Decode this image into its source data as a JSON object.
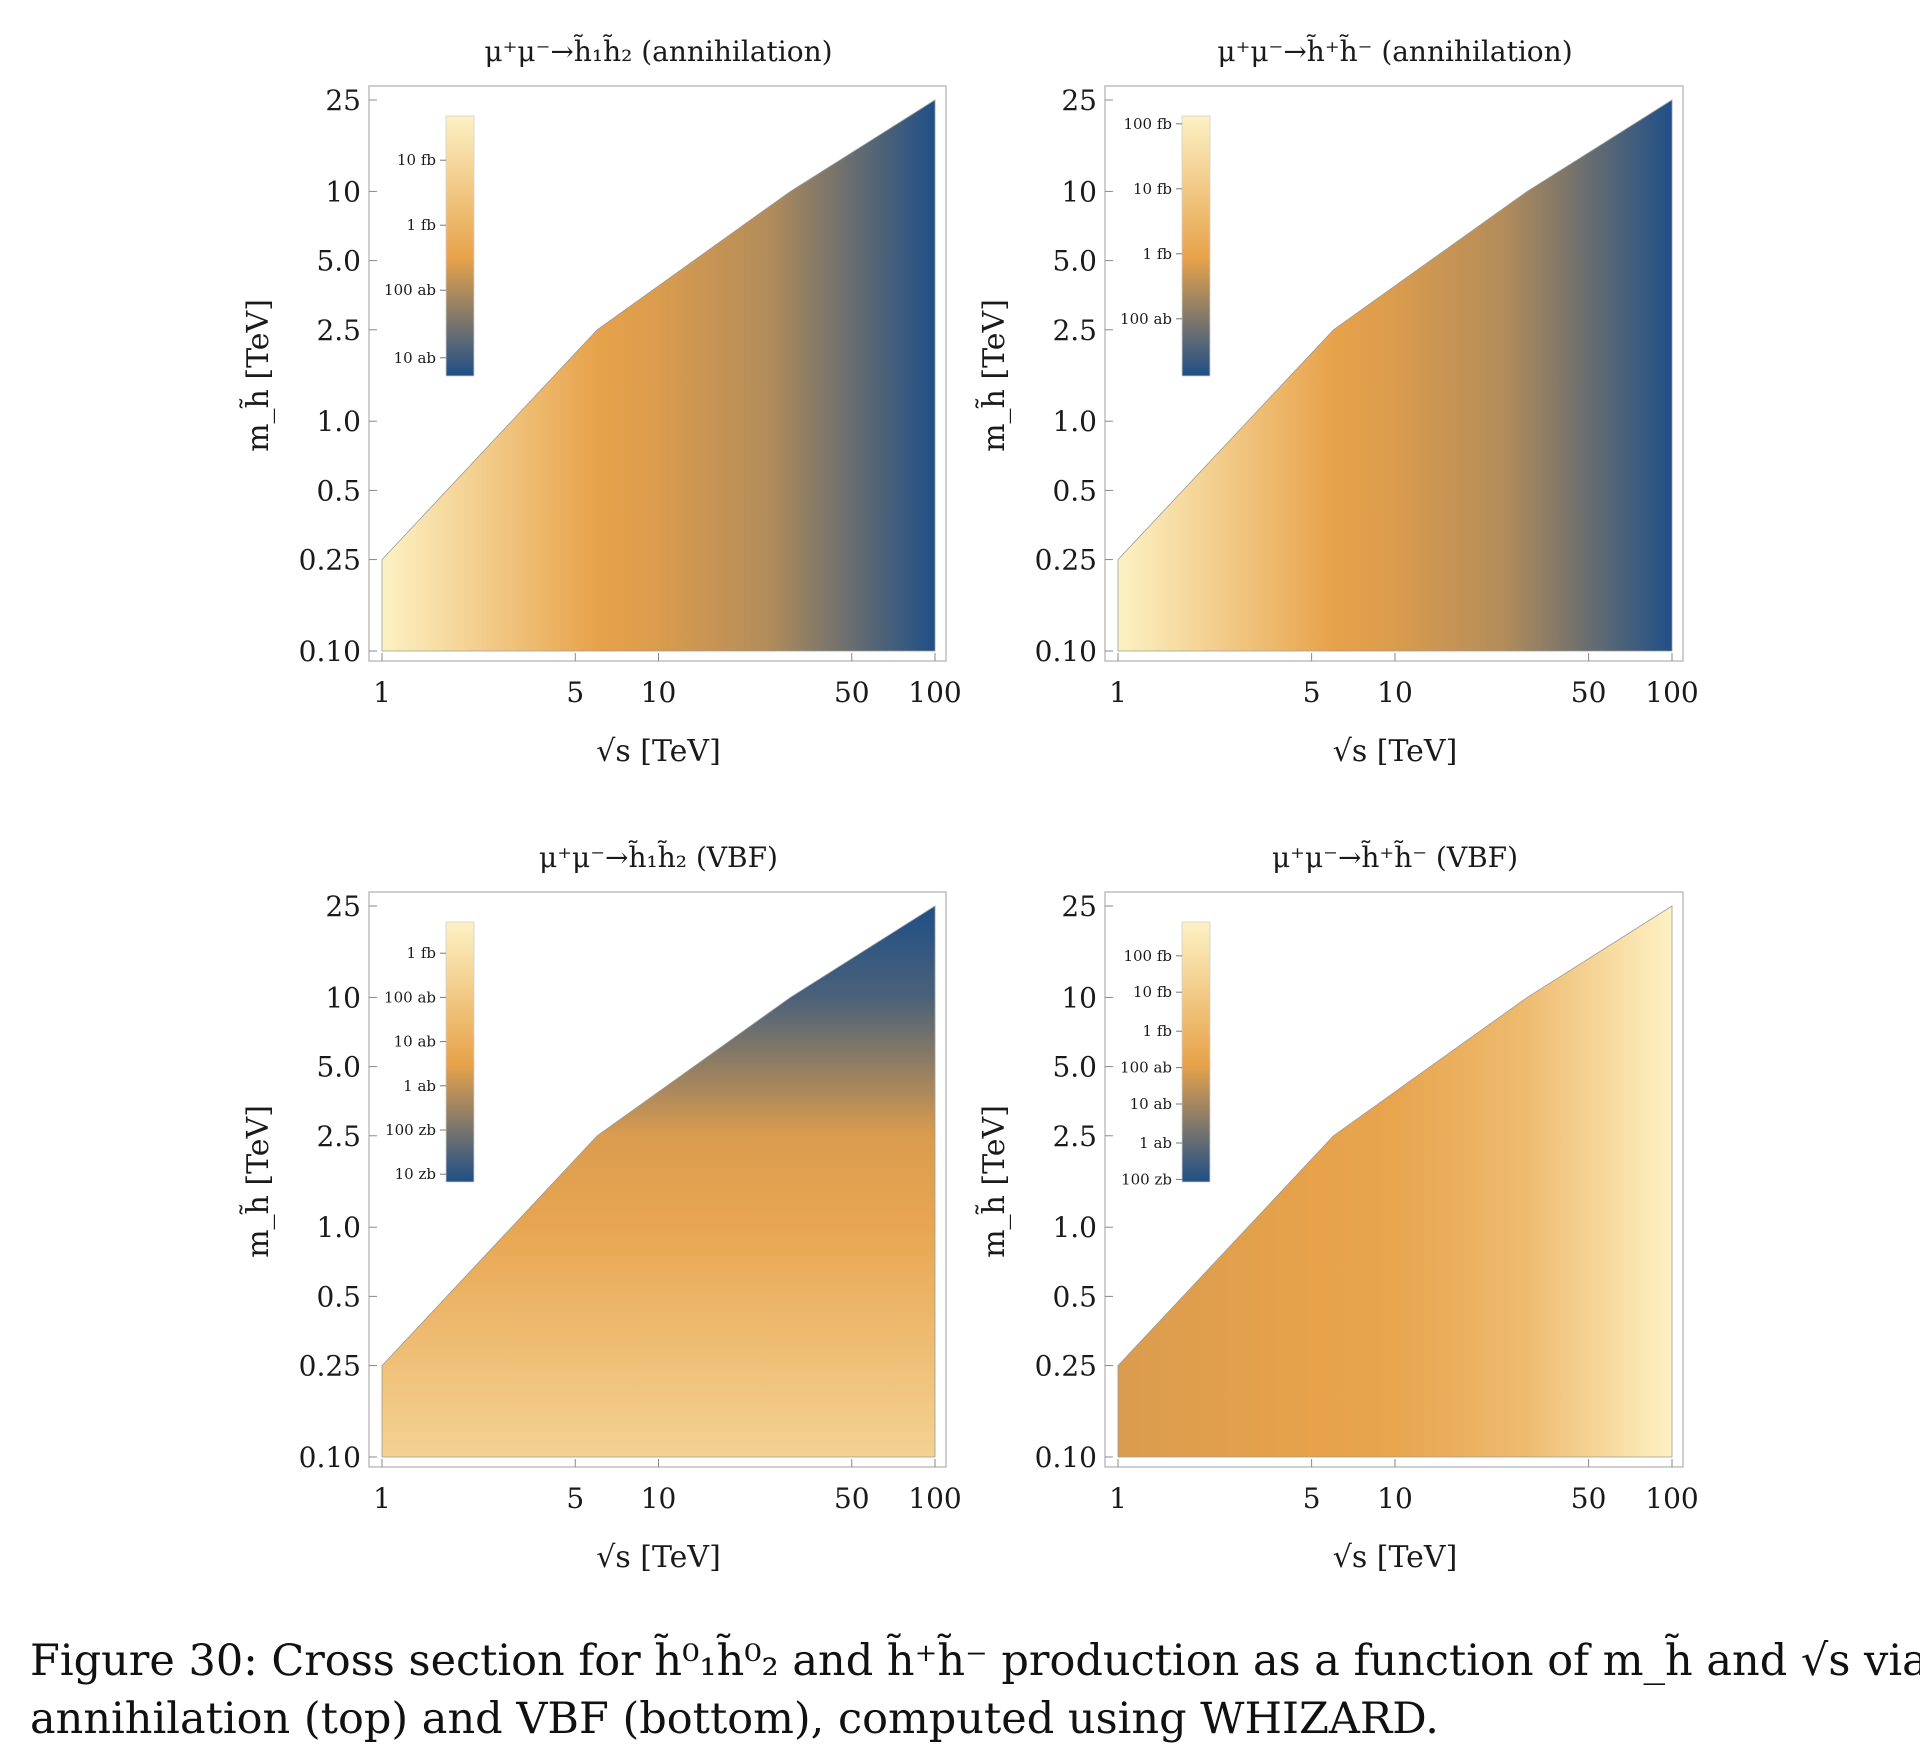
{
  "colors": {
    "low": "#1f4f87",
    "mid": "#e7a24a",
    "high": "#fdf2c4",
    "frame": "#b5b5b5",
    "text": "#1a1a1a"
  },
  "caption": {
    "line1": "Figure 30:  Cross section for h̃⁰₁h̃⁰₂ and h̃⁺h̃⁻ production as a function of m_h̃ and √s via",
    "line2": "annihilation (top) and VBF (bottom), computed using WHIZARD."
  },
  "chart_data": [
    {
      "type": "heatmap",
      "title": "μ⁺μ⁻→h̃₁h̃₂ (annihilation)",
      "xlabel": "√s  [TeV]",
      "ylabel": "m_h̃ [TeV]",
      "x_scale": "log",
      "y_scale": "log",
      "xlim": [
        1,
        100
      ],
      "ylim": [
        0.1,
        25
      ],
      "x_ticks": [
        "1",
        "5",
        "10",
        "50",
        "100"
      ],
      "x_tick_values": [
        1,
        5,
        10,
        50,
        100
      ],
      "y_ticks": [
        "25",
        "10",
        "5.0",
        "2.5",
        "1.0",
        "0.5",
        "0.25",
        "0.10"
      ],
      "y_tick_values": [
        25,
        10,
        5,
        2.5,
        1,
        0.5,
        0.25,
        0.1
      ],
      "region_boundary": [
        [
          1,
          0.1
        ],
        [
          1,
          0.25
        ],
        [
          6,
          2.5
        ],
        [
          30,
          10
        ],
        [
          100,
          25
        ],
        [
          100,
          0.1
        ]
      ],
      "gradient": "horizontal",
      "gradient_stops": [
        [
          1,
          1.0
        ],
        [
          6,
          0.45
        ],
        [
          10,
          0.42
        ],
        [
          25,
          0.33
        ],
        [
          100,
          0.0
        ]
      ],
      "colorbar": {
        "labels": [
          "10 fb",
          "1 fb",
          "100 ab",
          "10 ab"
        ],
        "label_positions": [
          0.83,
          0.58,
          0.33,
          0.07
        ],
        "reverse": false
      },
      "legend_position": "top-left"
    },
    {
      "type": "heatmap",
      "title": "μ⁺μ⁻→h̃⁺h̃⁻ (annihilation)",
      "xlabel": "√s  [TeV]",
      "ylabel": "m_h̃ [TeV]",
      "x_scale": "log",
      "y_scale": "log",
      "xlim": [
        1,
        100
      ],
      "ylim": [
        0.1,
        25
      ],
      "x_ticks": [
        "1",
        "5",
        "10",
        "50",
        "100"
      ],
      "x_tick_values": [
        1,
        5,
        10,
        50,
        100
      ],
      "y_ticks": [
        "25",
        "10",
        "5.0",
        "2.5",
        "1.0",
        "0.5",
        "0.25",
        "0.10"
      ],
      "y_tick_values": [
        25,
        10,
        5,
        2.5,
        1,
        0.5,
        0.25,
        0.1
      ],
      "region_boundary": [
        [
          1,
          0.1
        ],
        [
          1,
          0.25
        ],
        [
          6,
          2.5
        ],
        [
          30,
          10
        ],
        [
          100,
          25
        ],
        [
          100,
          0.1
        ]
      ],
      "gradient": "horizontal",
      "gradient_stops": [
        [
          1,
          1.0
        ],
        [
          6,
          0.45
        ],
        [
          10,
          0.42
        ],
        [
          25,
          0.33
        ],
        [
          100,
          0.0
        ]
      ],
      "colorbar": {
        "labels": [
          "100 fb",
          "10 fb",
          "1 fb",
          "100 ab"
        ],
        "label_positions": [
          0.97,
          0.72,
          0.47,
          0.22
        ],
        "reverse": false
      },
      "legend_position": "top-left"
    },
    {
      "type": "heatmap",
      "title": "μ⁺μ⁻→h̃₁h̃₂ (VBF)",
      "xlabel": "√s  [TeV]",
      "ylabel": "m_h̃ [TeV]",
      "x_scale": "log",
      "y_scale": "log",
      "xlim": [
        1,
        100
      ],
      "ylim": [
        0.1,
        25
      ],
      "x_ticks": [
        "1",
        "5",
        "10",
        "50",
        "100"
      ],
      "x_tick_values": [
        1,
        5,
        10,
        50,
        100
      ],
      "y_ticks": [
        "25",
        "10",
        "5.0",
        "2.5",
        "1.0",
        "0.5",
        "0.25",
        "0.10"
      ],
      "y_tick_values": [
        25,
        10,
        5,
        2.5,
        1,
        0.5,
        0.25,
        0.1
      ],
      "region_boundary": [
        [
          1,
          0.1
        ],
        [
          1,
          0.25
        ],
        [
          6,
          2.5
        ],
        [
          30,
          10
        ],
        [
          100,
          25
        ],
        [
          100,
          0.1
        ]
      ],
      "gradient": "vertical",
      "gradient_stops": [
        [
          0.1,
          0.78
        ],
        [
          1,
          0.48
        ],
        [
          2.5,
          0.42
        ],
        [
          10,
          0.1
        ],
        [
          25,
          0.0
        ]
      ],
      "colorbar": {
        "labels": [
          "1 fb",
          "100 ab",
          "10 ab",
          "1 ab",
          "100 zb",
          "10 zb"
        ],
        "label_positions": [
          0.88,
          0.71,
          0.54,
          0.37,
          0.2,
          0.03
        ],
        "reverse": false
      },
      "legend_position": "top-left"
    },
    {
      "type": "heatmap",
      "title": "μ⁺μ⁻→h̃⁺h̃⁻ (VBF)",
      "xlabel": "√s  [TeV]",
      "ylabel": "m_h̃ [TeV]",
      "x_scale": "log",
      "y_scale": "log",
      "xlim": [
        1,
        100
      ],
      "ylim": [
        0.1,
        25
      ],
      "x_ticks": [
        "1",
        "5",
        "10",
        "50",
        "100"
      ],
      "x_tick_values": [
        1,
        5,
        10,
        50,
        100
      ],
      "y_ticks": [
        "25",
        "10",
        "5.0",
        "2.5",
        "1.0",
        "0.5",
        "0.25",
        "0.10"
      ],
      "y_tick_values": [
        25,
        10,
        5,
        2.5,
        1,
        0.5,
        0.25,
        0.1
      ],
      "region_boundary": [
        [
          1,
          0.1
        ],
        [
          1,
          0.25
        ],
        [
          6,
          2.5
        ],
        [
          30,
          10
        ],
        [
          100,
          25
        ],
        [
          100,
          0.1
        ]
      ],
      "gradient": "horizontal",
      "gradient_stops": [
        [
          1,
          0.42
        ],
        [
          5,
          0.45
        ],
        [
          10,
          0.47
        ],
        [
          30,
          0.62
        ],
        [
          100,
          1.0
        ]
      ],
      "colorbar": {
        "labels": [
          "100 fb",
          "10 fb",
          "1 fb",
          "100 ab",
          "10 ab",
          "1 ab",
          "100 zb"
        ],
        "label_positions": [
          0.87,
          0.73,
          0.58,
          0.44,
          0.3,
          0.15,
          0.01
        ],
        "reverse": false
      },
      "legend_position": "top-left"
    }
  ]
}
